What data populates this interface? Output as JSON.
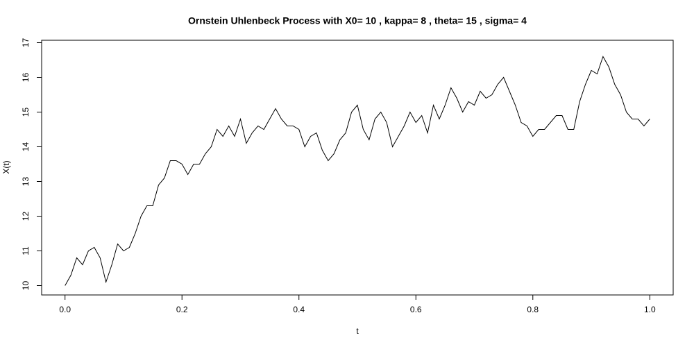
{
  "chart_data": {
    "type": "line",
    "title": "Ornstein Uhlenbeck Process with X0= 10 , kappa= 8 , theta= 15 , sigma= 4",
    "x_label": "t",
    "y_label": "X(t)",
    "color": "#000000",
    "grid": false,
    "xlim": [
      -0.04,
      1.04
    ],
    "ylim": [
      9.73,
      17.07
    ],
    "xticks": [
      {
        "value": 0,
        "label": "0.0"
      },
      0.2,
      0.4,
      0.6,
      0.8,
      {
        "value": 1,
        "label": "1.0"
      }
    ],
    "yticks": [
      10,
      11,
      12,
      13,
      14,
      15,
      16,
      17
    ],
    "x": [
      0,
      0.01,
      0.02,
      0.03,
      0.04,
      0.05,
      0.06,
      0.07,
      0.08,
      0.09,
      0.1,
      0.11,
      0.12,
      0.13,
      0.14,
      0.15,
      0.16,
      0.17,
      0.18,
      0.19,
      0.2,
      0.21,
      0.22,
      0.23,
      0.24,
      0.25,
      0.26,
      0.27,
      0.28,
      0.29,
      0.3,
      0.31,
      0.32,
      0.33,
      0.34,
      0.35,
      0.36,
      0.37,
      0.38,
      0.39,
      0.4,
      0.41,
      0.42,
      0.43,
      0.44,
      0.45,
      0.46,
      0.47,
      0.48,
      0.49,
      0.5,
      0.51,
      0.52,
      0.53,
      0.54,
      0.55,
      0.56,
      0.57,
      0.58,
      0.59,
      0.6,
      0.61,
      0.62,
      0.63,
      0.64,
      0.65,
      0.66,
      0.67,
      0.68,
      0.69,
      0.7,
      0.71,
      0.72,
      0.73,
      0.74,
      0.75,
      0.76,
      0.77,
      0.78,
      0.79,
      0.8,
      0.81,
      0.82,
      0.83,
      0.84,
      0.85,
      0.86,
      0.87,
      0.88,
      0.89,
      0.9,
      0.91,
      0.92,
      0.93,
      0.94,
      0.95,
      0.96,
      0.97,
      0.98,
      0.99,
      1
    ],
    "values": [
      10.0,
      10.3,
      10.8,
      10.6,
      11.0,
      11.1,
      10.8,
      10.1,
      10.6,
      11.2,
      11.0,
      11.1,
      11.5,
      12.0,
      12.3,
      12.3,
      12.9,
      13.1,
      13.6,
      13.6,
      13.5,
      13.2,
      13.5,
      13.5,
      13.8,
      14.0,
      14.5,
      14.3,
      14.6,
      14.3,
      14.8,
      14.1,
      14.4,
      14.6,
      14.5,
      14.8,
      15.1,
      14.8,
      14.6,
      14.6,
      14.5,
      14.0,
      14.3,
      14.4,
      13.9,
      13.6,
      13.8,
      14.2,
      14.4,
      15.0,
      15.2,
      14.5,
      14.2,
      14.8,
      15.0,
      14.7,
      14.0,
      14.3,
      14.6,
      15.0,
      14.7,
      14.9,
      14.4,
      15.2,
      14.8,
      15.2,
      15.7,
      15.4,
      15.0,
      15.3,
      15.2,
      15.6,
      15.4,
      15.5,
      15.8,
      16.0,
      15.6,
      15.2,
      14.7,
      14.6,
      14.3,
      14.5,
      14.5,
      14.7,
      14.9,
      14.9,
      14.5,
      14.5,
      15.3,
      15.8,
      16.2,
      16.1,
      16.6,
      16.3,
      15.8,
      15.5,
      15.0,
      14.8,
      14.8,
      14.6,
      14.8
    ]
  }
}
